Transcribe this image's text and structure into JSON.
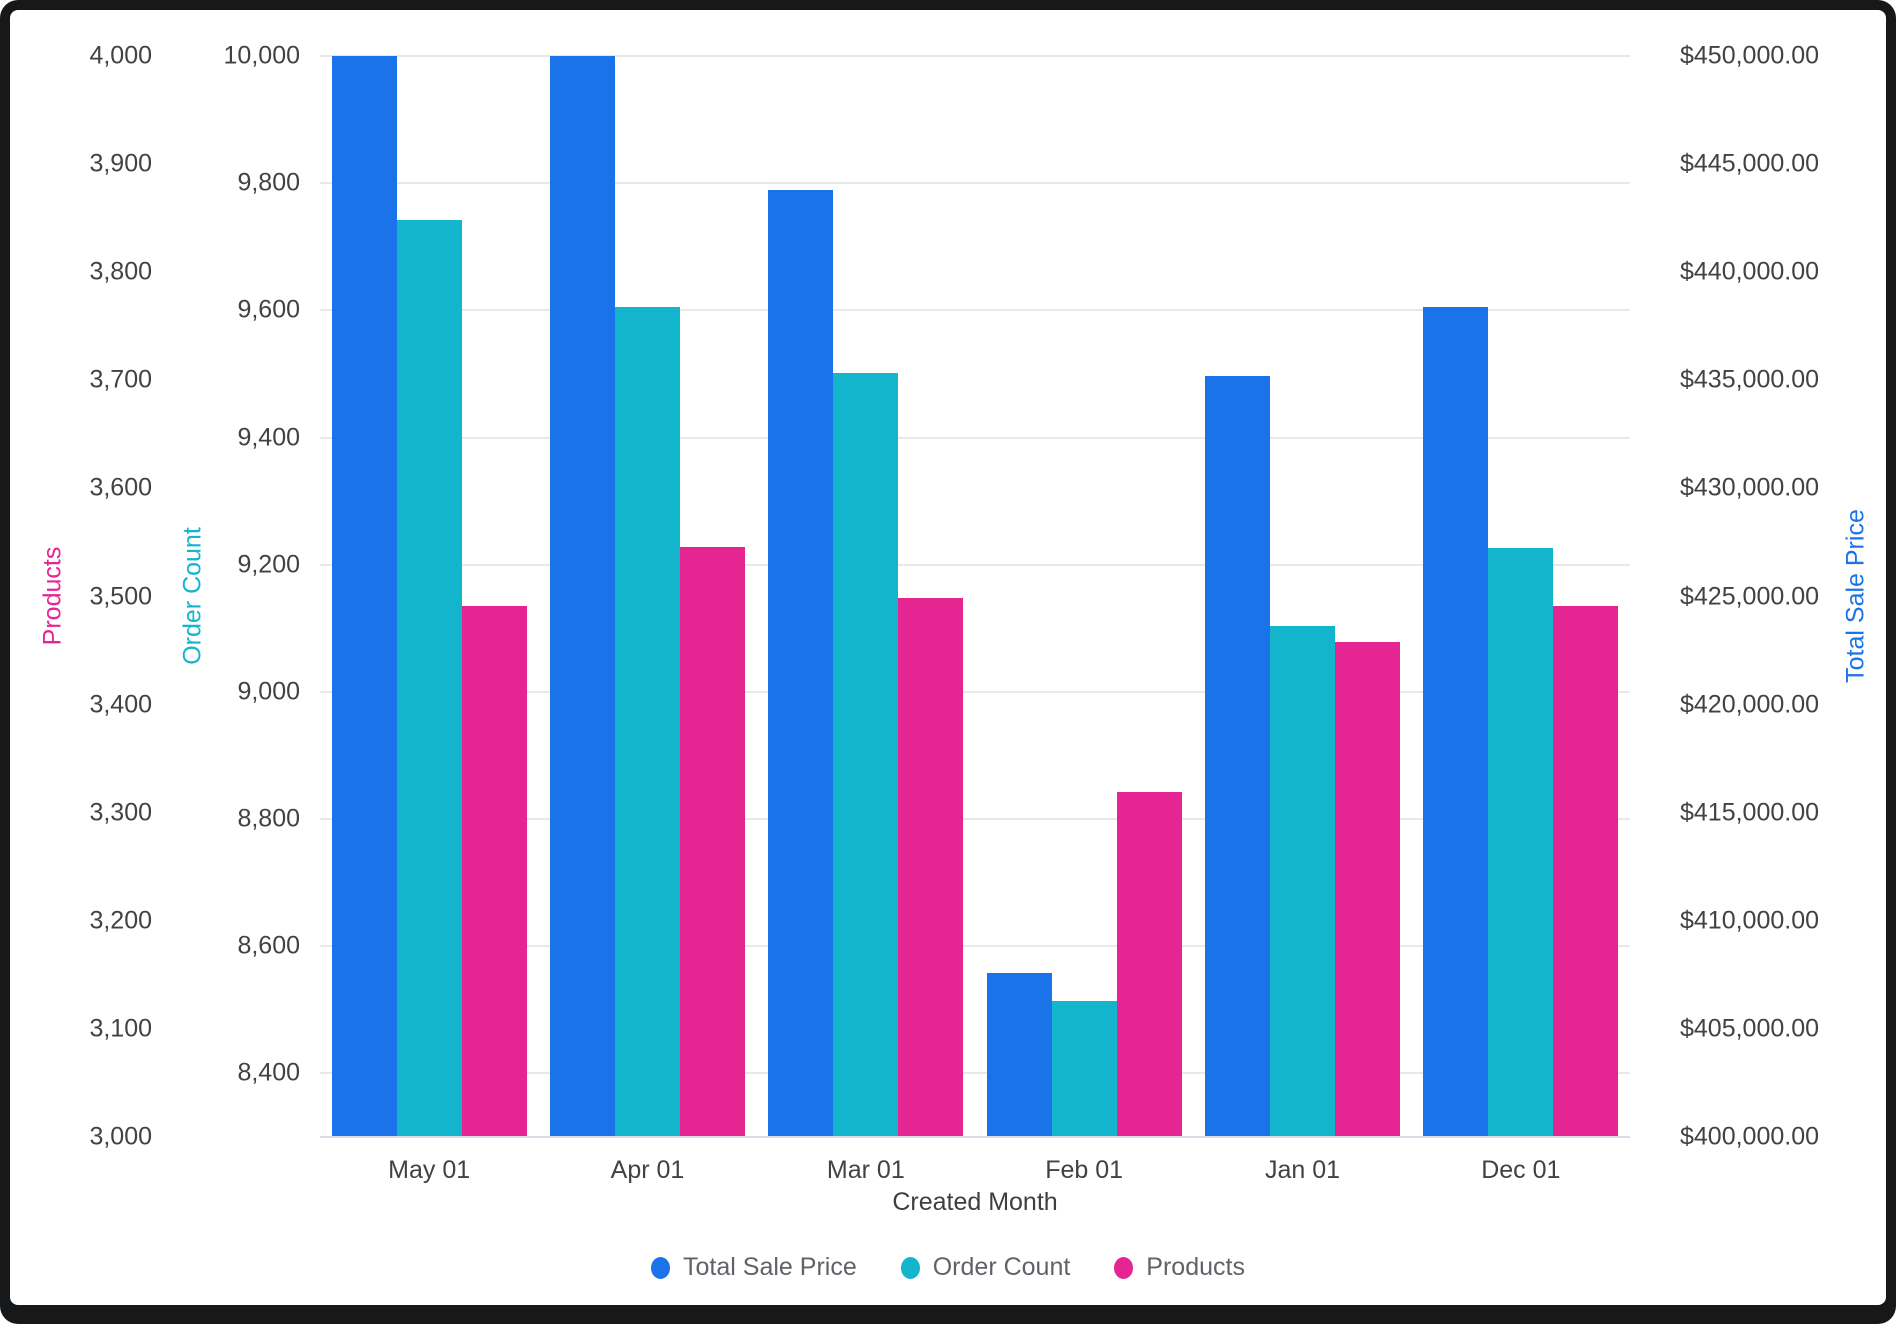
{
  "chart_data": {
    "type": "bar",
    "title": "",
    "xlabel": "Created Month",
    "categories": [
      "May 01",
      "Apr 01",
      "Mar 01",
      "Feb 01",
      "Jan 01",
      "Dec 01"
    ],
    "series": [
      {
        "name": "Total Sale Price",
        "axis": "right",
        "color": "#1A73E8",
        "values": [
          450000,
          450000,
          443800,
          407600,
          435200,
          438400
        ],
        "note": "May 01 and Apr 01 bars are clipped at the $450,000.00 axis maximum"
      },
      {
        "name": "Order Count",
        "axis": "left2",
        "color": "#12B5CB",
        "values": [
          9742,
          9606,
          9502,
          8514,
          9104,
          9226
        ]
      },
      {
        "name": "Products",
        "axis": "left1",
        "color": "#E52592",
        "values": [
          3491,
          3546,
          3499,
          3319,
          3458,
          3491
        ]
      }
    ],
    "axes": {
      "left1": {
        "title": "Products",
        "color": "#E52592",
        "min": 3000,
        "max": 4000,
        "ticks": [
          3000,
          3100,
          3200,
          3300,
          3400,
          3500,
          3600,
          3700,
          3800,
          3900,
          4000
        ],
        "format": "integer"
      },
      "left2": {
        "title": "Order Count",
        "color": "#12B5CB",
        "min": 8300,
        "max": 10000,
        "ticks": [
          8400,
          8600,
          8800,
          9000,
          9200,
          9400,
          9600,
          9800,
          10000
        ],
        "format": "integer"
      },
      "right": {
        "title": "Total Sale Price",
        "color": "#1A73E8",
        "min": 400000,
        "max": 450000,
        "ticks": [
          400000,
          405000,
          410000,
          415000,
          420000,
          425000,
          430000,
          435000,
          440000,
          445000,
          450000
        ],
        "format": "currency"
      }
    },
    "gridlines_follow": "left2",
    "legend_position": "bottom-center",
    "legend": [
      "Total Sale Price",
      "Order Count",
      "Products"
    ]
  },
  "colors": {
    "frame": "#17181a",
    "card_background": "#ffffff",
    "gridline": "#e8e8e8",
    "axis_line": "#d9dde8",
    "tick_text": "#424242",
    "legend_text": "#5f6368"
  }
}
